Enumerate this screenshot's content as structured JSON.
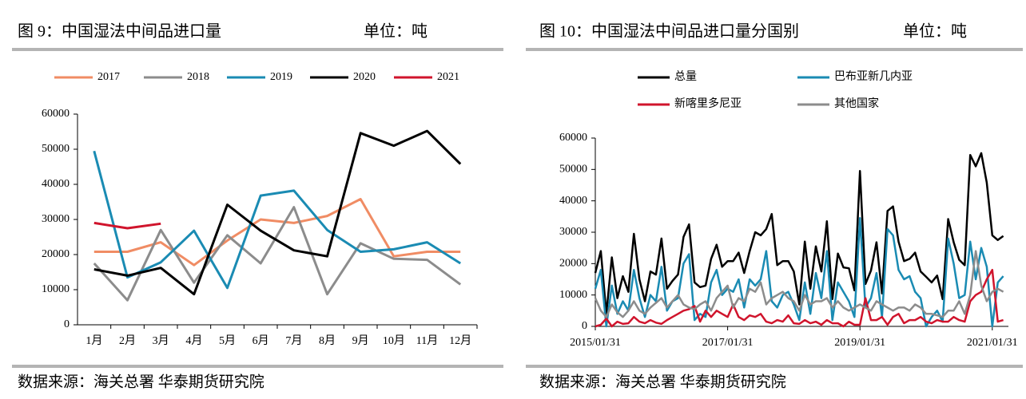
{
  "chart_data": [
    {
      "type": "line",
      "title": "图 9：中国湿法中间品进口量",
      "unit": "单位：吨",
      "source": "数据来源：海关总署 华泰期货研究院",
      "categories": [
        "1月",
        "2月",
        "3月",
        "4月",
        "5月",
        "6月",
        "7月",
        "8月",
        "9月",
        "10月",
        "11月",
        "12月"
      ],
      "ylim": [
        0,
        60000
      ],
      "yticks": [
        0,
        10000,
        20000,
        30000,
        40000,
        50000,
        60000
      ],
      "grid": false,
      "series": [
        {
          "name": "2017",
          "color": "#f08c64",
          "values": [
            20800,
            20800,
            23500,
            17000,
            24000,
            30000,
            29000,
            31000,
            35800,
            19500,
            20800,
            20800
          ]
        },
        {
          "name": "2018",
          "color": "#8c8c8c",
          "values": [
            17500,
            7000,
            27000,
            12000,
            25500,
            17500,
            33500,
            8700,
            23200,
            18800,
            18500,
            11500
          ]
        },
        {
          "name": "2019",
          "color": "#1a8bb3",
          "values": [
            49500,
            13500,
            17800,
            26800,
            10500,
            36800,
            38200,
            27000,
            20800,
            21500,
            23500,
            17500
          ]
        },
        {
          "name": "2020",
          "color": "#000000",
          "values": [
            15800,
            14000,
            16200,
            8700,
            34200,
            26800,
            21200,
            19500,
            54600,
            51000,
            55200,
            45800
          ]
        },
        {
          "name": "2021",
          "color": "#d0142c",
          "values": [
            29000,
            27500,
            28800,
            null,
            null,
            null,
            null,
            null,
            null,
            null,
            null,
            null
          ]
        }
      ]
    },
    {
      "type": "line",
      "title": "图 10：中国湿法中间品进口量分国别",
      "unit": "单位：吨",
      "source": "数据来源：海关总署 华泰期货研究院",
      "categories": [
        "2015/01/31",
        null,
        null,
        null,
        null,
        null,
        null,
        null,
        null,
        null,
        null,
        null,
        null,
        null,
        null,
        null,
        null,
        null,
        null,
        null,
        null,
        null,
        null,
        null,
        "2017/01/31",
        null,
        null,
        null,
        null,
        null,
        null,
        null,
        null,
        null,
        null,
        null,
        null,
        null,
        null,
        null,
        null,
        null,
        null,
        null,
        null,
        null,
        null,
        null,
        "2019/01/31",
        null,
        null,
        null,
        null,
        null,
        null,
        null,
        null,
        null,
        null,
        null,
        null,
        null,
        null,
        null,
        null,
        null,
        null,
        null,
        null,
        null,
        null,
        null,
        "2021/01/31",
        null,
        null
      ],
      "ylim": [
        0,
        60000
      ],
      "yticks": [
        0,
        10000,
        20000,
        30000,
        40000,
        50000,
        60000
      ],
      "grid": false,
      "series": [
        {
          "name": "总量",
          "color": "#000000",
          "values": [
            17000,
            24000,
            4000,
            22000,
            9000,
            16000,
            11000,
            29500,
            15000,
            8000,
            17500,
            16500,
            28000,
            12000,
            14500,
            16500,
            28500,
            32500,
            14000,
            12500,
            13000,
            21500,
            26000,
            19000,
            20800,
            20800,
            23500,
            17000,
            24000,
            30000,
            29000,
            31000,
            35800,
            19500,
            20800,
            20800,
            17500,
            7000,
            27000,
            12000,
            25500,
            17500,
            33500,
            8700,
            23200,
            18800,
            18500,
            11500,
            49500,
            13500,
            17800,
            26800,
            10500,
            36800,
            38200,
            27000,
            20800,
            21500,
            23500,
            17500,
            15800,
            14000,
            16200,
            8700,
            34200,
            26800,
            21200,
            19500,
            54600,
            51000,
            55200,
            45800,
            29000,
            27500,
            28800
          ]
        },
        {
          "name": "巴布亚新几内亚",
          "color": "#1a8bb3",
          "values": [
            12000,
            18000,
            0,
            13000,
            4000,
            8000,
            5000,
            18000,
            9000,
            3000,
            10000,
            8000,
            19000,
            5000,
            8000,
            9000,
            20000,
            23000,
            2000,
            4000,
            3000,
            14000,
            18000,
            10000,
            12000,
            11000,
            15000,
            6000,
            15000,
            13000,
            15000,
            24000,
            8000,
            6000,
            10000,
            11000,
            7000,
            2000,
            14000,
            4000,
            17000,
            9000,
            24000,
            2000,
            14000,
            11000,
            8000,
            3000,
            34500,
            6000,
            9000,
            17000,
            3000,
            31000,
            29000,
            18000,
            15000,
            16000,
            11000,
            9000,
            0,
            3000,
            5000,
            1500,
            28000,
            20000,
            9000,
            10000,
            27000,
            15000,
            25000,
            19000,
            0,
            14000,
            16000
          ]
        },
        {
          "name": "新喀里多尼亚",
          "color": "#d0142c",
          "values": [
            0,
            500,
            2500,
            0,
            1500,
            800,
            1000,
            3000,
            1500,
            1000,
            2000,
            1200,
            800,
            2000,
            3000,
            4000,
            5000,
            5500,
            6500,
            1500,
            5000,
            3000,
            5000,
            4000,
            3000,
            7000,
            3000,
            2000,
            3500,
            3000,
            4000,
            1500,
            1000,
            2000,
            1500,
            3500,
            1000,
            800,
            2000,
            1000,
            1500,
            500,
            2000,
            1000,
            1000,
            0,
            1500,
            500,
            500,
            9000,
            2000,
            2000,
            3000,
            500,
            3000,
            4000,
            1000,
            2000,
            2000,
            3000,
            1500,
            1000,
            2000,
            1500,
            1500,
            3000,
            2000,
            1500,
            8000,
            10000,
            11000,
            15000,
            18000,
            1500,
            2000
          ]
        },
        {
          "name": "其他国家",
          "color": "#8c8c8c",
          "values": [
            9000,
            5000,
            3000,
            7000,
            4500,
            3000,
            5000,
            8000,
            5000,
            4000,
            6000,
            7500,
            9000,
            6000,
            8000,
            10000,
            7000,
            6000,
            5500,
            7000,
            8000,
            5000,
            9000,
            11000,
            13000,
            6000,
            9000,
            8000,
            12000,
            11000,
            14000,
            7000,
            9000,
            10000,
            11000,
            9000,
            8000,
            5000,
            10000,
            7000,
            8000,
            8000,
            9000,
            6000,
            8000,
            6000,
            5000,
            6000,
            7000,
            6000,
            5000,
            8000,
            7000,
            6000,
            5000,
            6000,
            6000,
            5000,
            7000,
            6000,
            4000,
            4000,
            3500,
            3000,
            5000,
            5000,
            8000,
            4000,
            10000,
            24000,
            13000,
            8000,
            11000,
            12000,
            11000
          ]
        }
      ]
    }
  ]
}
